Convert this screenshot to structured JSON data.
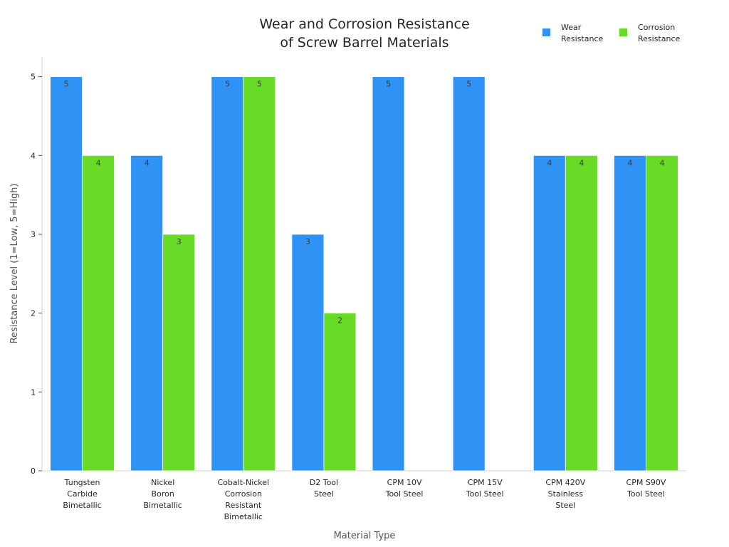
{
  "chart_data": {
    "type": "bar",
    "title": [
      "Wear and Corrosion Resistance",
      "of Screw Barrel Materials"
    ],
    "xlabel": "Material Type",
    "ylabel": "Resistance Level (1=Low, 5=High)",
    "ylim": [
      0,
      5.25
    ],
    "yticks": [
      "0",
      "1",
      "2",
      "3",
      "4",
      "5"
    ],
    "categories": [
      [
        "Tungsten",
        "Carbide",
        "Bimetallic"
      ],
      [
        "Nickel",
        "Boron",
        "Bimetallic"
      ],
      [
        "Cobalt-Nickel",
        "Corrosion",
        "Resistant",
        "Bimetallic"
      ],
      [
        "D2 Tool",
        "Steel"
      ],
      [
        "CPM 10V",
        "Tool Steel"
      ],
      [
        "CPM 15V",
        "Tool Steel"
      ],
      [
        "CPM 420V",
        "Stainless",
        "Steel"
      ],
      [
        "CPM S90V",
        "Tool Steel"
      ]
    ],
    "series": [
      {
        "name": [
          "Wear",
          "Resistance"
        ],
        "color": "#2f92f5",
        "values": [
          5,
          4,
          5,
          3,
          5,
          5,
          4,
          4
        ]
      },
      {
        "name": [
          "Corrosion",
          "Resistance"
        ],
        "color": "#67db26",
        "values": [
          4,
          3,
          5,
          2,
          null,
          null,
          4,
          4
        ]
      }
    ],
    "data_labels": true,
    "grid": false,
    "legend": "top-right"
  }
}
